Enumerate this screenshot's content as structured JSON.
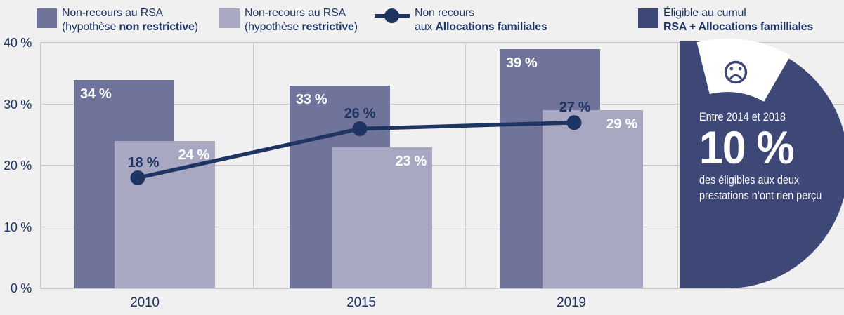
{
  "colors": {
    "background": "#f0f0f1",
    "grid": "#c9c9cb",
    "navy": "#1e3563",
    "navy_dark": "#3d4877",
    "bar_dark": "#70739a",
    "bar_light": "#a8a8c3",
    "white": "#ffffff"
  },
  "legend": [
    {
      "line1": "Non-recours au RSA",
      "line2_prefix": "(hypothèse ",
      "line2_bold": "non restrictive",
      "line2_suffix": ")"
    },
    {
      "line1": "Non-recours au RSA",
      "line2_prefix": "(hypothèse ",
      "line2_bold": "restrictive",
      "line2_suffix": ")"
    },
    {
      "line1": "Non recours",
      "line2_prefix": "aux ",
      "line2_bold": "Allocations familiales",
      "line2_suffix": ""
    },
    {
      "line1": "Éligible au cumul",
      "line2_prefix": "",
      "line2_bold": "RSA + Allocations familliales",
      "line2_suffix": ""
    }
  ],
  "chart_data": {
    "type": "bar+line",
    "categories": [
      "2010",
      "2015",
      "2019"
    ],
    "series": [
      {
        "name": "Non-recours au RSA (hypothèse non restrictive)",
        "type": "bar",
        "values": [
          34,
          33,
          39
        ]
      },
      {
        "name": "Non-recours au RSA (hypothèse restrictive)",
        "type": "bar",
        "values": [
          24,
          23,
          29
        ]
      },
      {
        "name": "Non recours aux Allocations familiales",
        "type": "line",
        "values": [
          18,
          26,
          27
        ]
      }
    ],
    "value_suffix": " %",
    "yticks": [
      0,
      10,
      20,
      30,
      40
    ],
    "ytick_suffix": " %",
    "ylim": [
      0,
      40
    ],
    "grid": true,
    "legend_position": "top"
  },
  "callout": {
    "period": "Entre 2014 et 2018",
    "percentage": "10 %",
    "desc_line1": "des éligibles aux deux",
    "desc_line2": "prestations n’ont rien perçu"
  }
}
